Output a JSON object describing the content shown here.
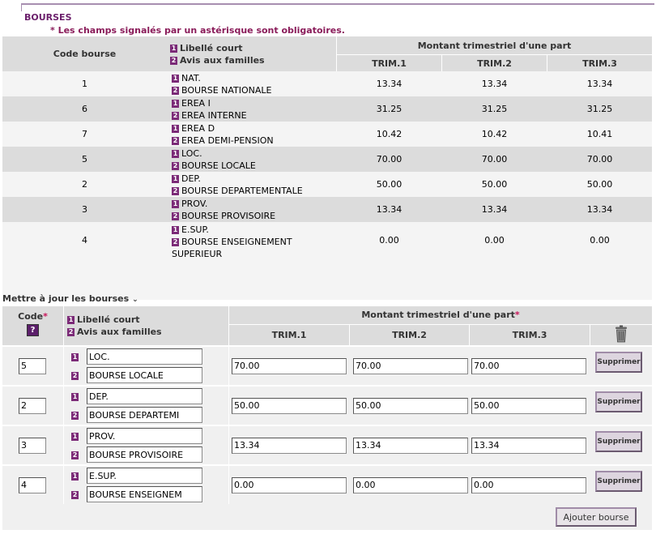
{
  "section_title": "BOURSES",
  "required_note": "* Les champs signalés par un astérisque sont obligatoires.",
  "list_table": {
    "col_code": "Code bourse",
    "legend": [
      {
        "badge": "1",
        "text": "Libellé court"
      },
      {
        "badge": "2",
        "text": "Avis aux familles"
      }
    ],
    "amount_header": "Montant trimestriel d'une part",
    "trims": [
      "TRIM.1",
      "TRIM.2",
      "TRIM.3"
    ],
    "rows": [
      {
        "code": "1",
        "short": "NAT.",
        "long": "BOURSE NATIONALE",
        "t1": "13.34",
        "t2": "13.34",
        "t3": "13.34"
      },
      {
        "code": "6",
        "short": "EREA I",
        "long": "EREA INTERNE",
        "t1": "31.25",
        "t2": "31.25",
        "t3": "31.25"
      },
      {
        "code": "7",
        "short": "EREA D",
        "long": "EREA DEMI-PENSION",
        "t1": "10.42",
        "t2": "10.42",
        "t3": "10.41"
      },
      {
        "code": "5",
        "short": "LOC.",
        "long": "BOURSE LOCALE",
        "t1": "70.00",
        "t2": "70.00",
        "t3": "70.00"
      },
      {
        "code": "2",
        "short": "DEP.",
        "long": "BOURSE DEPARTEMENTALE",
        "t1": "50.00",
        "t2": "50.00",
        "t3": "50.00"
      },
      {
        "code": "3",
        "short": "PROV.",
        "long": "BOURSE PROVISOIRE",
        "t1": "13.34",
        "t2": "13.34",
        "t3": "13.34"
      },
      {
        "code": "4",
        "short": "E.SUP.",
        "long": "BOURSE ENSEIGNEMENT",
        "long2": "SUPERIEUR",
        "t1": "0.00",
        "t2": "0.00",
        "t3": "0.00"
      }
    ]
  },
  "update": {
    "link_label": "Mettre à jour les bourses",
    "link_icon": "chevron-down-icon",
    "col_code": "Code",
    "required_star": "*",
    "help_label": "?",
    "legend": [
      {
        "badge": "1",
        "text": "Libellé court"
      },
      {
        "badge": "2",
        "text": "Avis aux familles"
      }
    ],
    "amount_header": "Montant trimestriel d'une part",
    "trims": [
      "TRIM.1",
      "TRIM.2",
      "TRIM.3"
    ],
    "trash_icon": "trash-icon",
    "delete_label": "Supprimer",
    "rows": [
      {
        "code": "5",
        "short": "LOC.",
        "long": "BOURSE LOCALE",
        "t1": "70.00",
        "t2": "70.00",
        "t3": "70.00"
      },
      {
        "code": "2",
        "short": "DEP.",
        "long": "BOURSE DEPARTEMI",
        "t1": "50.00",
        "t2": "50.00",
        "t3": "50.00"
      },
      {
        "code": "3",
        "short": "PROV.",
        "long": "BOURSE PROVISOIRE",
        "t1": "13.34",
        "t2": "13.34",
        "t3": "13.34"
      },
      {
        "code": "4",
        "short": "E.SUP.",
        "long": "BOURSE ENSEIGNEM",
        "t1": "0.00",
        "t2": "0.00",
        "t3": "0.00"
      }
    ],
    "add_label": "Ajouter bourse"
  },
  "colors": {
    "accent": "#7b2a77",
    "title": "#6b1f6b",
    "required": "#c8155a"
  }
}
